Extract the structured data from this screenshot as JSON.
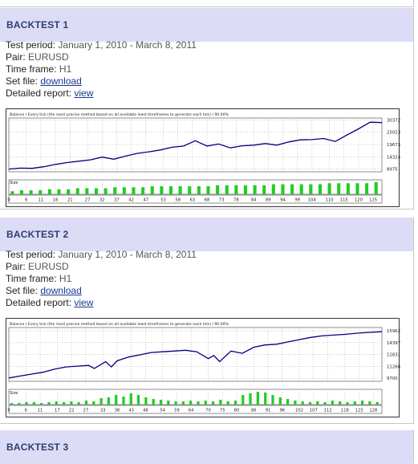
{
  "labels": {
    "test_period": "Test period:",
    "pair": "Pair:",
    "time_frame": "Time frame:",
    "set_file": "Set file:",
    "detailed_report": "Detailed report:"
  },
  "backtests": [
    {
      "title": "BACKTEST 1",
      "test_period": "January 1, 2010 - March 8, 2011",
      "pair": "EURUSD",
      "time_frame": "H1",
      "set_file_link": "download",
      "report_link": "view",
      "chart_caption": "Balance / Every tick (the most precise method based on all available least timeframes to generate each tick) / 90.00%",
      "size_label": "Size"
    },
    {
      "title": "BACKTEST 2",
      "test_period": "January 1, 2010 - March 8, 2011",
      "pair": "EURUSD",
      "time_frame": "H1",
      "set_file_link": "download",
      "report_link": "view",
      "chart_caption": "Balance / Every tick (the most precise method based on all available least timeframes to generate each tick) / 90.00%",
      "size_label": "Size"
    },
    {
      "title": "BACKTEST 3"
    }
  ],
  "chart_data": [
    {
      "type": "line",
      "title": "Balance / Every tick (the most precise method based on all available least timeframes to generate each tick) / 90.00%",
      "color": "#000080",
      "size_bar_color": "#22cc22",
      "y_ticks": [
        30372,
        25023,
        19673,
        14324,
        8975
      ],
      "x_ticks": [
        0,
        6,
        11,
        16,
        21,
        27,
        32,
        37,
        42,
        47,
        53,
        58,
        63,
        68,
        73,
        78,
        84,
        89,
        94,
        99,
        104,
        110,
        115,
        120,
        125
      ],
      "xlim": [
        0,
        128
      ],
      "ylim": [
        7800,
        31200
      ],
      "grid": true,
      "series": [
        {
          "x": [
            0,
            4,
            8,
            12,
            16,
            20,
            24,
            28,
            32,
            36,
            40,
            44,
            48,
            52,
            56,
            60,
            64,
            68,
            72,
            76,
            80,
            84,
            88,
            92,
            96,
            100,
            104,
            108,
            112,
            116,
            120,
            124,
            128
          ],
          "values": [
            9000,
            9400,
            9300,
            10000,
            11000,
            11800,
            12400,
            13000,
            14200,
            13300,
            14600,
            15800,
            16500,
            17300,
            18500,
            19000,
            21300,
            19000,
            19900,
            18200,
            19100,
            19400,
            20100,
            19400,
            20800,
            21700,
            21800,
            22300,
            21000,
            23800,
            26500,
            29400,
            29200
          ]
        }
      ],
      "size_values": [
        3,
        4,
        4,
        4,
        5,
        5,
        5,
        6,
        6,
        6,
        6,
        7,
        7,
        7,
        7,
        8,
        8,
        8,
        8,
        8,
        8,
        8,
        9,
        9,
        9,
        9,
        9,
        9,
        10,
        10,
        10,
        10,
        10,
        10,
        11,
        11,
        11,
        11,
        11,
        12
      ]
    },
    {
      "type": "line",
      "title": "Balance / Every tick (the most precise method based on all available least timeframes to generate each tick) / 90.00%",
      "color": "#000080",
      "size_bar_color": "#22cc22",
      "y_ticks": [
        15962,
        14397,
        12831,
        11266,
        9700
      ],
      "x_ticks": [
        0,
        6,
        11,
        17,
        22,
        27,
        33,
        38,
        43,
        48,
        54,
        59,
        64,
        70,
        75,
        80,
        86,
        91,
        96,
        102,
        107,
        112,
        118,
        123,
        128
      ],
      "xlim": [
        0,
        131
      ],
      "ylim": [
        9300,
        16400
      ],
      "grid": true,
      "series": [
        {
          "x": [
            0,
            4,
            8,
            12,
            16,
            20,
            24,
            28,
            30,
            34,
            36,
            38,
            42,
            46,
            50,
            54,
            58,
            62,
            66,
            70,
            72,
            74,
            78,
            82,
            86,
            90,
            94,
            98,
            102,
            106,
            110,
            114,
            118,
            122,
            126,
            131
          ],
          "values": [
            9750,
            10000,
            10250,
            10500,
            10900,
            11200,
            11300,
            11400,
            11000,
            11900,
            11200,
            12000,
            12500,
            12800,
            13100,
            13200,
            13300,
            13400,
            13200,
            12300,
            12700,
            11900,
            13300,
            13000,
            13800,
            14100,
            14200,
            14500,
            14800,
            15100,
            15300,
            15400,
            15500,
            15650,
            15750,
            15850
          ]
        }
      ],
      "size_values": [
        2,
        2,
        3,
        3,
        2,
        3,
        4,
        3,
        4,
        3,
        5,
        4,
        8,
        9,
        12,
        10,
        14,
        12,
        9,
        7,
        6,
        5,
        4,
        4,
        5,
        4,
        5,
        4,
        6,
        4,
        5,
        12,
        14,
        16,
        15,
        12,
        9,
        7,
        5,
        4,
        3,
        4,
        3,
        5,
        4,
        3,
        4,
        5,
        4,
        3
      ]
    }
  ]
}
